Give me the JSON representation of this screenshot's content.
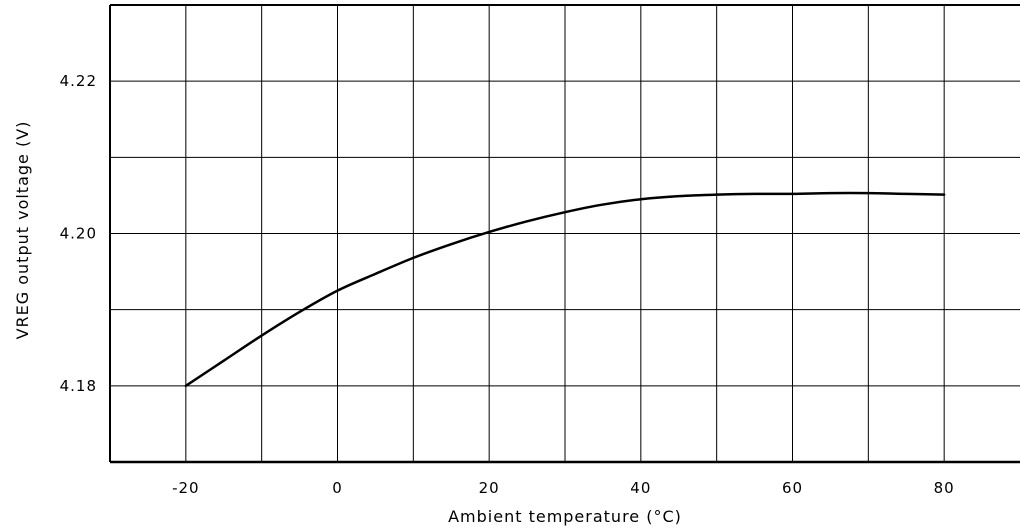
{
  "chart_data": {
    "type": "line",
    "title": "",
    "xlabel": "Ambient temperature (°C)",
    "ylabel": "VREG output voltage (V)",
    "xlim": [
      -30,
      90
    ],
    "ylim": [
      4.17,
      4.23
    ],
    "x_ticks": [
      -20,
      -10,
      0,
      10,
      20,
      30,
      40,
      50,
      60,
      70,
      80
    ],
    "x_tick_labels": [
      {
        "value": -20,
        "label": "-20"
      },
      {
        "value": 0,
        "label": "0"
      },
      {
        "value": 20,
        "label": "20"
      },
      {
        "value": 40,
        "label": "40"
      },
      {
        "value": 60,
        "label": "60"
      },
      {
        "value": 80,
        "label": "80"
      }
    ],
    "y_ticks": [
      4.18,
      4.19,
      4.2,
      4.21,
      4.22
    ],
    "y_tick_labels": [
      {
        "value": 4.22,
        "label": "4.22"
      },
      {
        "value": 4.2,
        "label": "4.20"
      },
      {
        "value": 4.18,
        "label": "4.18"
      }
    ],
    "grid": true,
    "series": [
      {
        "color": "#000000",
        "x": [
          -20,
          -15,
          -10,
          -5,
          0,
          5,
          10,
          15,
          20,
          25,
          30,
          35,
          40,
          45,
          50,
          55,
          60,
          65,
          70,
          75,
          80
        ],
        "y": [
          4.18,
          4.1833,
          4.1866,
          4.1897,
          4.1925,
          4.1947,
          4.1968,
          4.1986,
          4.2002,
          4.2016,
          4.2028,
          4.2038,
          4.2045,
          4.2049,
          4.2051,
          4.2052,
          4.2052,
          4.2053,
          4.2053,
          4.2052,
          4.2051
        ]
      }
    ]
  }
}
